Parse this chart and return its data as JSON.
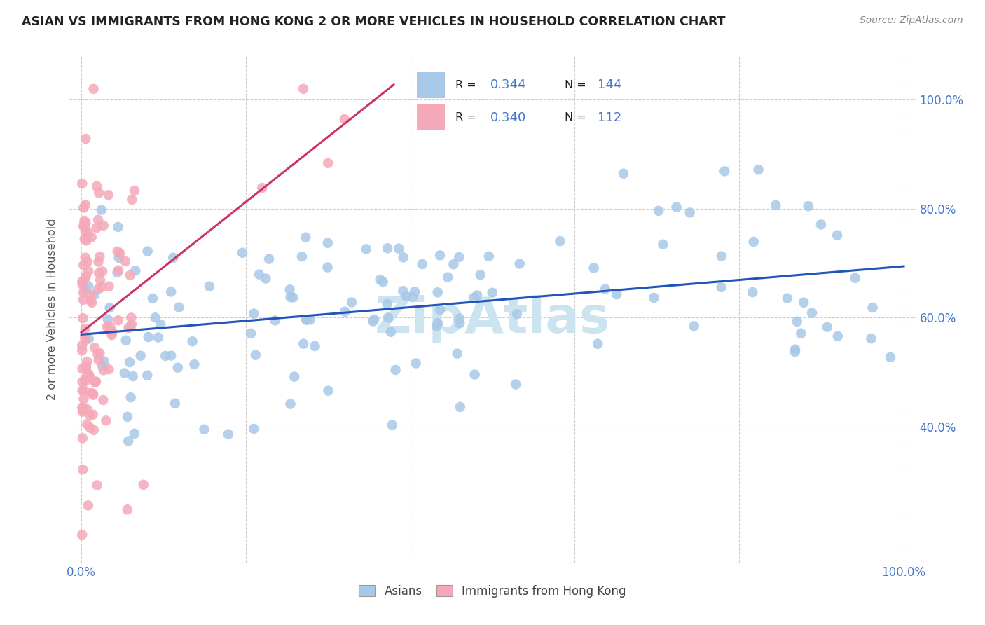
{
  "title": "ASIAN VS IMMIGRANTS FROM HONG KONG 2 OR MORE VEHICLES IN HOUSEHOLD CORRELATION CHART",
  "source": "Source: ZipAtlas.com",
  "ylabel": "2 or more Vehicles in Household",
  "legend_label_blue": "Asians",
  "legend_label_pink": "Immigrants from Hong Kong",
  "R_blue": 0.344,
  "N_blue": 144,
  "R_pink": 0.34,
  "N_pink": 112,
  "blue_color": "#a8c8e8",
  "pink_color": "#f5a8b8",
  "blue_line_color": "#2255bb",
  "pink_line_color": "#cc3366",
  "watermark_color": "#cce4f0",
  "title_color": "#222222",
  "source_color": "#888888",
  "ylabel_color": "#555555",
  "tick_color": "#4477cc",
  "grid_color": "#cccccc",
  "legend_border_color": "#aaaaaa",
  "xlim": [
    -0.015,
    1.015
  ],
  "ylim": [
    0.15,
    1.08
  ],
  "yticks": [
    0.4,
    0.6,
    0.8,
    1.0
  ],
  "ytick_labels": [
    "40.0%",
    "60.0%",
    "80.0%",
    "100.0%"
  ],
  "xtick_positions": [
    0.0,
    0.2,
    0.4,
    0.6,
    0.8,
    1.0
  ],
  "xtick_labels_show": [
    "0.0%",
    "",
    "",
    "",
    "",
    "100.0%"
  ]
}
